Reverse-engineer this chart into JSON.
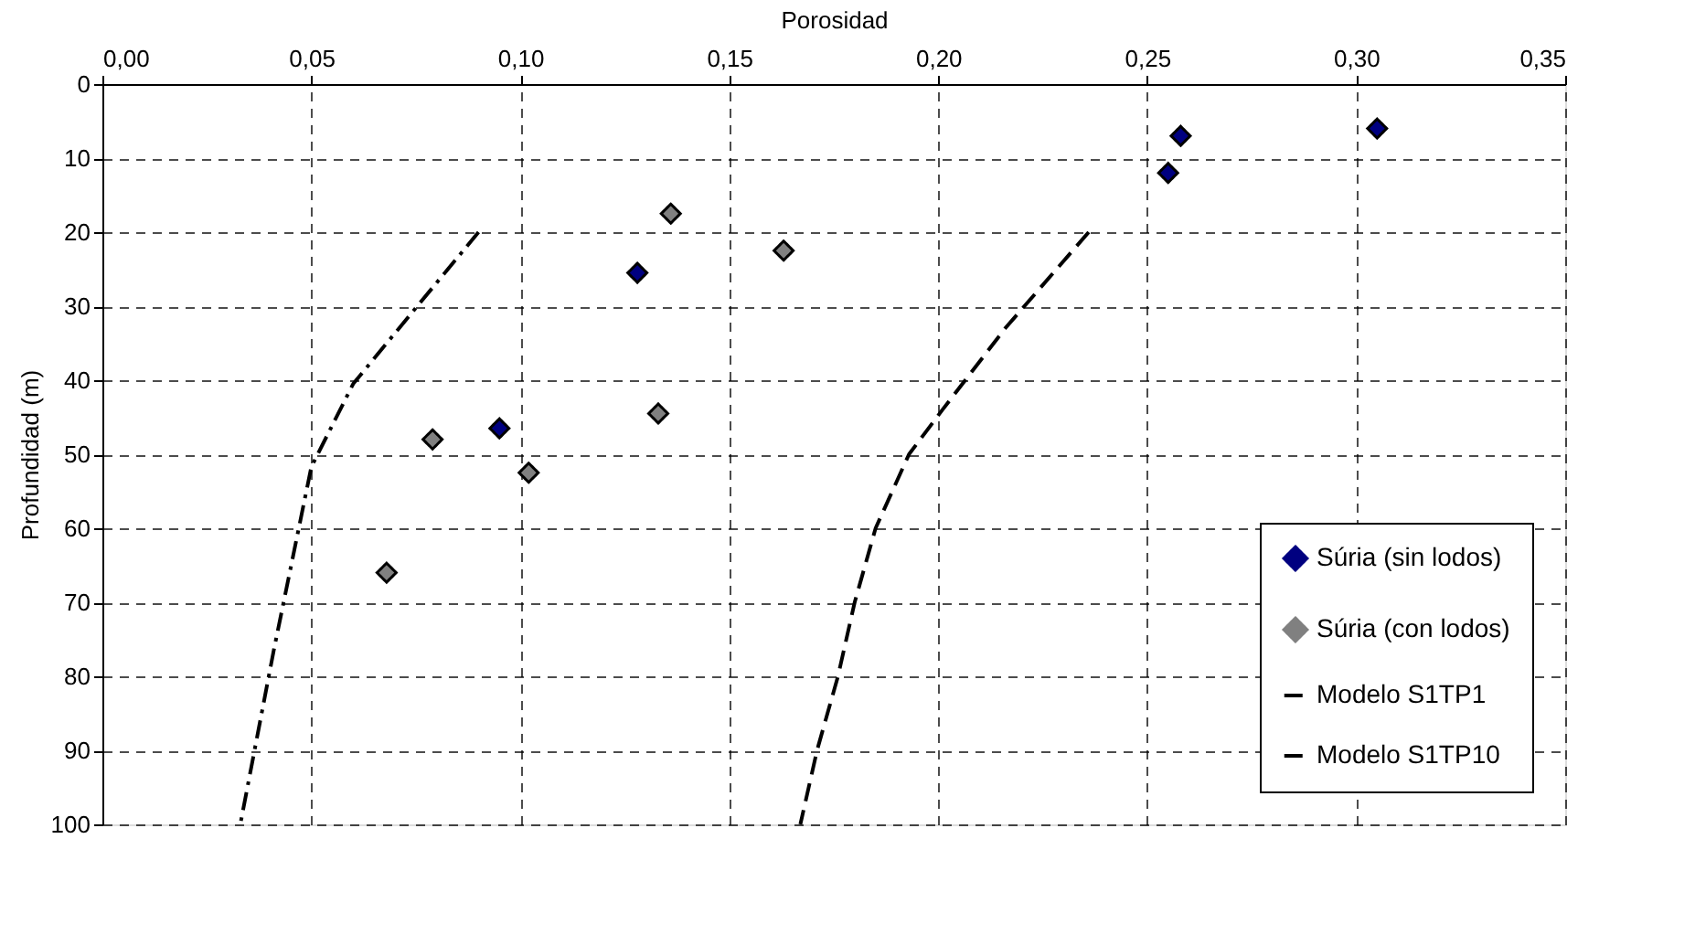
{
  "chart_data": {
    "type": "scatter",
    "xlabel": "Porosidad",
    "ylabel": "Profundidad (m)",
    "xlim": [
      0,
      0.35
    ],
    "xticks": [
      {
        "value": 0,
        "label": "0,00"
      },
      {
        "value": 0.05,
        "label": "0,05"
      },
      {
        "value": 0.1,
        "label": "0,10"
      },
      {
        "value": 0.15,
        "label": "0,15"
      },
      {
        "value": 0.2,
        "label": "0,20"
      },
      {
        "value": 0.25,
        "label": "0,25"
      },
      {
        "value": 0.3,
        "label": "0,30"
      },
      {
        "value": 0.35,
        "label": "0,35"
      }
    ],
    "ylim": [
      100,
      0
    ],
    "yticks": [
      0,
      10,
      20,
      30,
      40,
      50,
      60,
      70,
      80,
      90,
      100
    ],
    "grid": true,
    "legend": "bottom right",
    "series": [
      {
        "name": "Súria (sin lodos)",
        "marker": "diamond",
        "color": "#000080",
        "x": [
          0.258,
          0.255,
          0.305,
          0.128,
          0.095
        ],
        "values": [
          7,
          12,
          6,
          25.5,
          46.5
        ]
      },
      {
        "name": "Súria (con lodos)",
        "marker": "diamond",
        "color": "#808080",
        "x": [
          0.136,
          0.163,
          0.133,
          0.079,
          0.102,
          0.068
        ],
        "values": [
          17.5,
          22.5,
          44.5,
          48,
          52.5,
          66
        ]
      },
      {
        "name": "Modelo S1TP1",
        "type": "line",
        "line_style": "dashed",
        "color": "#000000",
        "x": [
          0.236,
          0.216,
          0.201,
          0.193,
          0.185,
          0.18,
          0.176,
          0.171,
          0.167
        ],
        "values": [
          20,
          33,
          44,
          50,
          60,
          70,
          80,
          90,
          100
        ]
      },
      {
        "name": "Modelo S1TP10",
        "type": "line",
        "line_style": "dashdot",
        "color": "#000000",
        "x": [
          0.09,
          0.073,
          0.06,
          0.05,
          0.041,
          0.033
        ],
        "values": [
          20,
          31.6,
          40.5,
          51.7,
          76.5,
          100
        ]
      }
    ]
  }
}
